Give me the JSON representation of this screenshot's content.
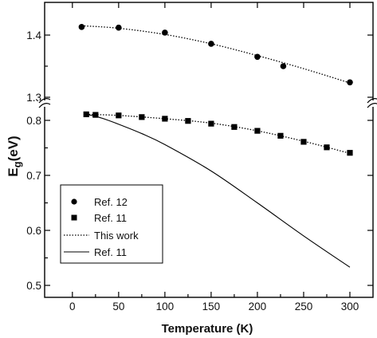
{
  "chart_data": {
    "type": "scatter",
    "xlabel": "Temperature (K)",
    "ylabel_main": "E",
    "ylabel_sub": "g",
    "ylabel_unit": "(eV)",
    "x_ticks": [
      "0",
      "50",
      "100",
      "150",
      "200",
      "250",
      "300"
    ],
    "xlim": [
      -30,
      325
    ],
    "y_axis_broken": true,
    "upper_panel": {
      "ylim": [
        1.29,
        1.46
      ],
      "ticks": [
        "1.4",
        "1.3"
      ]
    },
    "lower_panel": {
      "ylim": [
        0.5,
        0.82
      ],
      "ticks": [
        "0.8",
        "0.7",
        "0.6",
        "0.5"
      ]
    },
    "legend_placement": "lower-left",
    "series": [
      {
        "name": "Ref. 12",
        "marker": "circle",
        "panel": "upper",
        "x": [
          10,
          50,
          100,
          150,
          200,
          228,
          300
        ],
        "y": [
          1.413,
          1.412,
          1.404,
          1.386,
          1.365,
          1.35,
          1.324
        ]
      },
      {
        "name": "Ref. 11",
        "marker": "square",
        "panel": "lower",
        "x": [
          15,
          25,
          50,
          75,
          100,
          125,
          150,
          175,
          200,
          225,
          250,
          275,
          300
        ],
        "y": [
          0.811,
          0.81,
          0.809,
          0.806,
          0.803,
          0.799,
          0.794,
          0.788,
          0.781,
          0.772,
          0.761,
          0.751,
          0.741
        ]
      },
      {
        "name": "This work",
        "line": "dotted",
        "segments": [
          {
            "panel": "upper",
            "x": [
              10,
              50,
              100,
              150,
              200,
              250,
              300
            ],
            "y": [
              1.415,
              1.411,
              1.401,
              1.386,
              1.367,
              1.346,
              1.323
            ]
          },
          {
            "panel": "lower",
            "x": [
              15,
              50,
              100,
              150,
              200,
              250,
              300
            ],
            "y": [
              0.811,
              0.809,
              0.803,
              0.795,
              0.781,
              0.762,
              0.74
            ]
          }
        ]
      },
      {
        "name": "Ref. 11",
        "line": "solid",
        "panel": "lower",
        "x": [
          15,
          30,
          50,
          75,
          100,
          150,
          200,
          250,
          300
        ],
        "y": [
          0.811,
          0.805,
          0.793,
          0.776,
          0.756,
          0.708,
          0.65,
          0.59,
          0.533
        ]
      }
    ]
  }
}
